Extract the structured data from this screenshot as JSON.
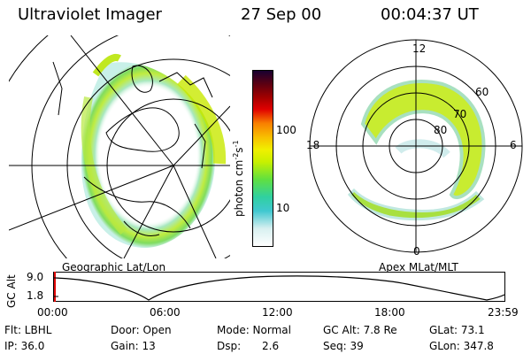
{
  "header": {
    "title": "Ultraviolet Imager",
    "date": "27 Sep 00",
    "time": "00:04:37 UT"
  },
  "left_panel": {
    "caption": "Geographic Lat/Lon"
  },
  "right_panel": {
    "caption": "Apex MLat/MLT",
    "mlt_labels": {
      "top": "12",
      "right": "6",
      "bottom": "0",
      "left": "18"
    },
    "lat_labels": [
      "60",
      "70",
      "80"
    ]
  },
  "colorbar": {
    "unit_label": "photon cm",
    "unit_exp1": "-2",
    "unit_s": "s",
    "unit_exp2": "-1",
    "ticks": [
      "100",
      "10"
    ],
    "colors": [
      "#ffffff",
      "#d8f0f0",
      "#40c8d0",
      "#30d0a0",
      "#60e040",
      "#c8f000",
      "#f0f000",
      "#f8c000",
      "#f88000",
      "#e00000",
      "#a00000",
      "#600010",
      "#180030"
    ]
  },
  "alt_strip": {
    "label": "GC Alt",
    "y_ticks": [
      "9.0",
      "1.8"
    ],
    "x_ticks": [
      "00:00",
      "06:00",
      "12:00",
      "18:00",
      "23:59"
    ]
  },
  "info": {
    "flt": "Flt: LBHL",
    "ip": "IP: 36.0",
    "door": "Door: Open",
    "gain": "Gain: 13",
    "mode": "Mode: Normal",
    "dsp_label": "Dsp:",
    "dsp_value": "2.6",
    "gcalt": "GC Alt: 7.8 Re",
    "seq": "Seq: 39",
    "glat": "GLat: 73.1",
    "glon": "GLon: 347.8"
  }
}
